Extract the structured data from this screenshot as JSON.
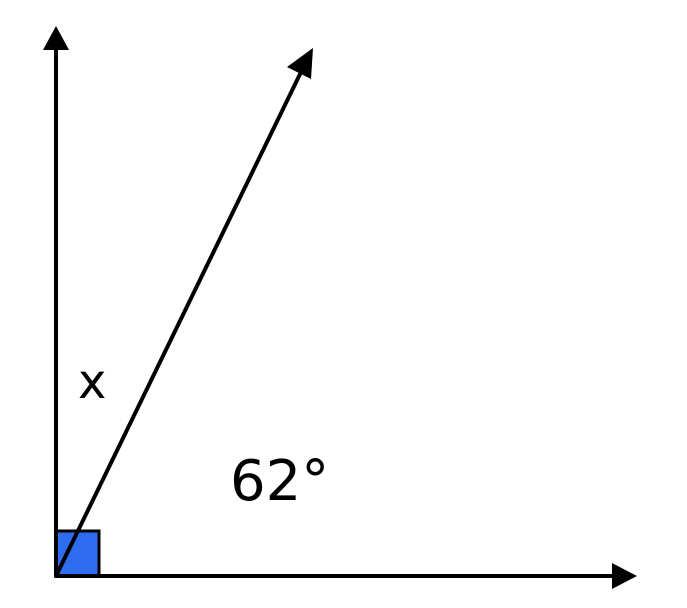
{
  "labels": {
    "unknown_angle": "x",
    "known_angle": "62°"
  },
  "colors": {
    "right_angle_marker": "#2f6df0",
    "lines": "#000000"
  },
  "angles": {
    "right_angle_degrees": 90,
    "known_angle_degrees": 62
  }
}
